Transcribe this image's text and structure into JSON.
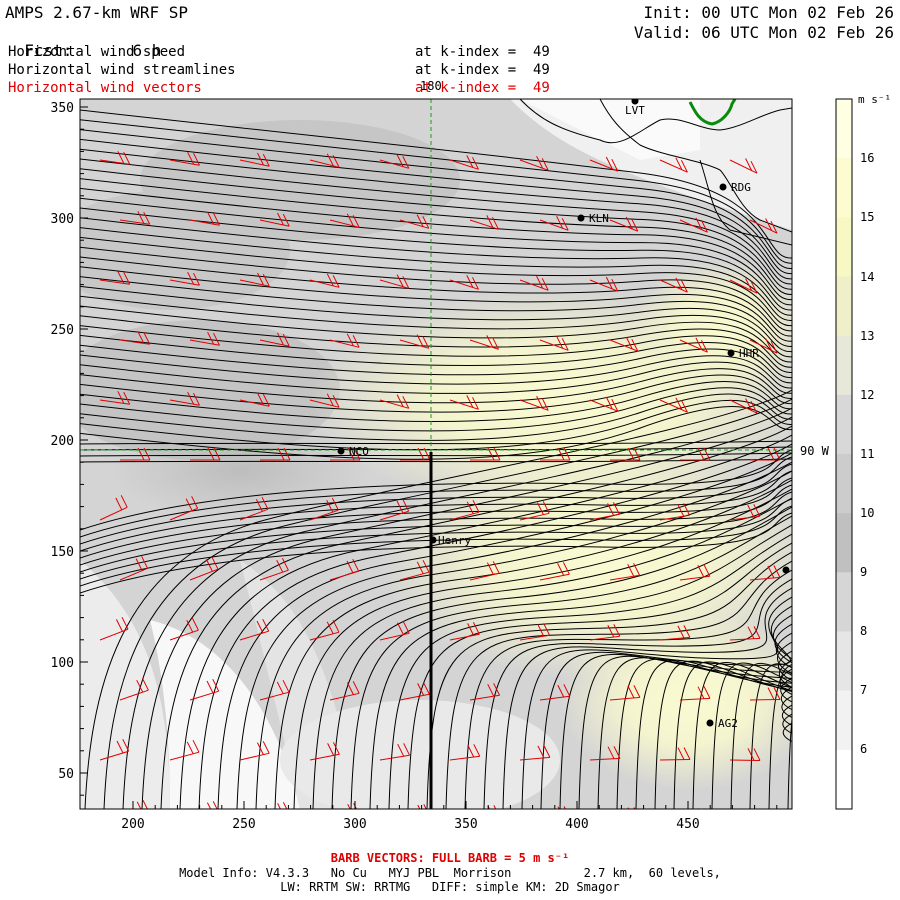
{
  "header": {
    "model_title": "AMPS 2.67-km WRF SP",
    "fcst_label": "Fcst:",
    "fcst_value": "6 h",
    "init": "Init: 00 UTC Mon 02 Feb 26",
    "valid": "Valid: 06 UTC Mon 02 Feb 26",
    "fields": [
      {
        "name": "Horizontal wind speed",
        "level": "at k-index =  49"
      },
      {
        "name": "Horizontal wind streamlines",
        "level": "at k-index =  49"
      },
      {
        "name": "Horizontal wind vectors",
        "level": "at k-index =  49"
      }
    ]
  },
  "map": {
    "x_ticks": [
      "200",
      "250",
      "300",
      "350",
      "400",
      "450"
    ],
    "y_ticks": [
      "350",
      "300",
      "250",
      "200",
      "150",
      "100",
      "50"
    ],
    "meridian_label": "180",
    "parallel_label": "90 W",
    "cross_section_label": "Henry",
    "stations": [
      "LVT",
      "RDG",
      "KLN",
      "HHR",
      "NCO",
      "AG2"
    ]
  },
  "colorbar": {
    "unit": "m s⁻¹",
    "levels": [
      "16",
      "15",
      "14",
      "13",
      "12",
      "11",
      "10",
      "9",
      "8",
      "7",
      "6"
    ],
    "colors": [
      "#ffffe4",
      "#fcfcd0",
      "#f8f8c4",
      "#f0f0c8",
      "#e8e8d8",
      "#d8d8d8",
      "#cccccc",
      "#c0c0c0",
      "#d6d6d6",
      "#e6e6e6",
      "#f2f2f2",
      "#ffffff"
    ]
  },
  "footer": {
    "barb_note": "BARB VECTORS: FULL BARB = 5 m s⁻¹",
    "model_info": "Model Info: V4.3.3   No Cu   MYJ PBL  Morrison          2.7 km,  60 levels,",
    "physics": "LW: RRTM SW: RRTMG   DIFF: simple KM: 2D Smagor"
  }
}
